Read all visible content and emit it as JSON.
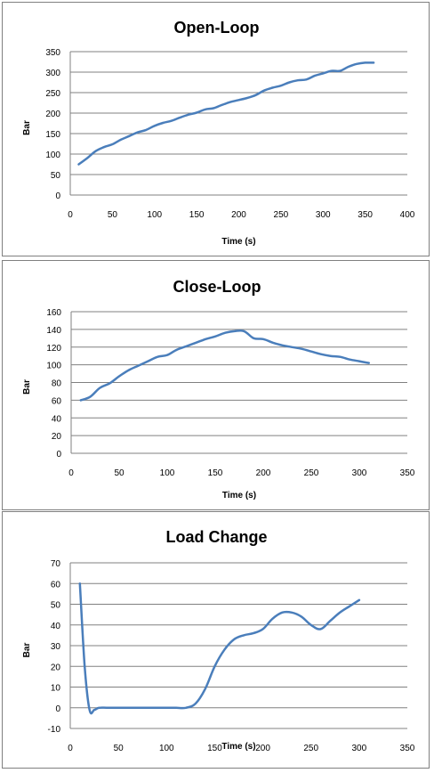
{
  "chart_data": [
    {
      "type": "line",
      "title": "Open-Loop",
      "xlabel": "Time (s)",
      "ylabel": "Bar",
      "xlim": [
        0,
        400
      ],
      "ylim": [
        0,
        350
      ],
      "xticks": [
        0,
        50,
        100,
        150,
        200,
        250,
        300,
        350,
        400
      ],
      "yticks": [
        0,
        50,
        100,
        150,
        200,
        250,
        300,
        350
      ],
      "grid": "horizontal",
      "legend": "none",
      "color": "#4A7EBB",
      "x": [
        10,
        20,
        30,
        40,
        50,
        60,
        70,
        80,
        90,
        100,
        110,
        120,
        130,
        140,
        150,
        160,
        170,
        180,
        190,
        200,
        210,
        220,
        230,
        240,
        250,
        260,
        270,
        280,
        290,
        300,
        310,
        320,
        330,
        340,
        350,
        360
      ],
      "y": [
        75,
        90,
        107,
        117,
        124,
        135,
        144,
        153,
        159,
        169,
        176,
        181,
        189,
        196,
        201,
        209,
        212,
        220,
        227,
        232,
        237,
        244,
        255,
        262,
        267,
        275,
        280,
        282,
        291,
        297,
        303,
        303,
        313,
        320,
        323,
        323
      ]
    },
    {
      "type": "line",
      "title": "Close-Loop",
      "xlabel": "Time (s)",
      "ylabel": "Bar",
      "xlim": [
        0,
        350
      ],
      "ylim": [
        0,
        160
      ],
      "xticks": [
        0,
        50,
        100,
        150,
        200,
        250,
        300,
        350
      ],
      "yticks": [
        0,
        20,
        40,
        60,
        80,
        100,
        120,
        140,
        160
      ],
      "grid": "horizontal",
      "legend": "none",
      "color": "#4A7EBB",
      "x": [
        10,
        20,
        30,
        40,
        50,
        60,
        70,
        80,
        90,
        100,
        110,
        120,
        130,
        140,
        150,
        160,
        170,
        180,
        190,
        200,
        210,
        220,
        230,
        240,
        250,
        260,
        270,
        280,
        290,
        300,
        310
      ],
      "y": [
        60,
        64,
        74,
        79,
        87,
        94,
        99,
        104,
        109,
        111,
        117,
        121,
        125,
        129,
        132,
        136,
        138,
        138,
        130,
        129,
        125,
        122,
        120,
        118,
        115,
        112,
        110,
        109,
        106,
        104,
        102
      ]
    },
    {
      "type": "line",
      "title": "Load Change",
      "xlabel": "Time (s)",
      "ylabel": "Bar",
      "xlim": [
        0,
        350
      ],
      "ylim": [
        -10,
        70
      ],
      "xticks": [
        0,
        50,
        100,
        150,
        200,
        250,
        300,
        350
      ],
      "yticks": [
        -10,
        0,
        10,
        20,
        30,
        40,
        50,
        60,
        70
      ],
      "grid": "horizontal",
      "legend": "none",
      "color": "#4A7EBB",
      "x": [
        10,
        15,
        20,
        25,
        30,
        40,
        60,
        80,
        100,
        110,
        120,
        130,
        140,
        150,
        160,
        170,
        180,
        190,
        200,
        210,
        220,
        230,
        240,
        250,
        260,
        270,
        280,
        290,
        300
      ],
      "y": [
        60,
        20,
        -1,
        -1,
        0,
        0,
        0,
        0,
        0,
        0,
        0,
        2,
        9,
        20,
        28,
        33,
        35,
        36,
        38,
        43,
        46,
        46,
        44,
        40,
        38,
        42,
        46,
        49,
        52
      ]
    }
  ]
}
